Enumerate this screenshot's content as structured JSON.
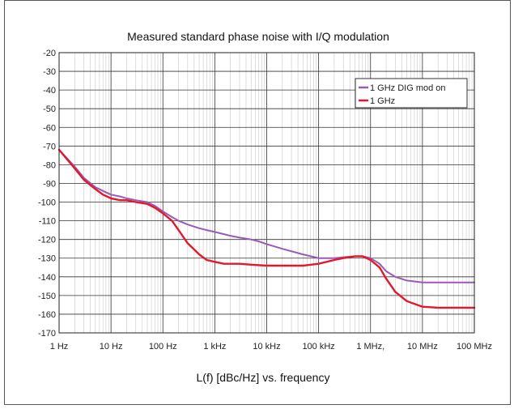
{
  "chart_data": {
    "type": "line",
    "title": "Measured standard phase noise with I/Q modulation",
    "xlabel": "L(f) [dBc/Hz] vs. frequency",
    "ylabel": "",
    "x_scale": "log",
    "x_unit": "Hz",
    "xlim": [
      1,
      100000000
    ],
    "ylim": [
      -170,
      -20
    ],
    "y_ticks": [
      -20,
      -30,
      -40,
      -50,
      -60,
      -70,
      -80,
      -90,
      -100,
      -110,
      -120,
      -130,
      -140,
      -150,
      -160,
      -170
    ],
    "y_tick_labels": [
      "-20",
      "-30",
      "-40",
      "-50",
      "-60",
      "-70",
      "-80",
      "-90",
      "-100",
      "-110",
      "-120",
      "-130",
      "-140",
      "-150",
      "-160",
      "-170"
    ],
    "x_ticks": [
      1,
      10,
      100,
      1000,
      10000,
      100000,
      1000000,
      10000000,
      100000000
    ],
    "x_tick_labels": [
      "1 Hz",
      "10 Hz",
      "100 Hz",
      "1 kHz",
      "10 kHz",
      "100 kHz",
      "1 MHz,",
      "10 MHz",
      "100 MHz"
    ],
    "grid": true,
    "legend": "top-right",
    "series": [
      {
        "name": "1 GHz DIG mod on",
        "color": "#9b59b6",
        "x": [
          1,
          2,
          3,
          5,
          7,
          10,
          15,
          20,
          30,
          50,
          70,
          100,
          150,
          200,
          300,
          500,
          700,
          1000,
          2000,
          3000,
          5000,
          7000,
          10000,
          20000,
          50000,
          100000,
          200000,
          300000,
          500000,
          700000,
          1000000,
          1500000,
          2000000,
          3000000,
          5000000,
          10000000,
          20000000,
          50000000,
          100000000
        ],
        "y": [
          -72,
          -81,
          -87,
          -92,
          -94,
          -96,
          -97,
          -98,
          -99,
          -100,
          -102,
          -105,
          -108,
          -110,
          -112,
          -114,
          -115,
          -116,
          -118,
          -119,
          -120,
          -121,
          -122.5,
          -125,
          -128,
          -130,
          -130,
          -129.5,
          -129,
          -129,
          -130,
          -133,
          -137,
          -140,
          -142,
          -143,
          -143,
          -143,
          -143
        ]
      },
      {
        "name": "1 GHz",
        "color": "#e2192c",
        "x": [
          1,
          2,
          3,
          5,
          7,
          10,
          15,
          20,
          30,
          50,
          70,
          100,
          150,
          200,
          300,
          500,
          700,
          1000,
          1500,
          2000,
          3000,
          5000,
          10000,
          20000,
          50000,
          100000,
          200000,
          300000,
          500000,
          700000,
          1000000,
          1500000,
          2000000,
          3000000,
          5000000,
          10000000,
          20000000,
          50000000,
          100000000
        ],
        "y": [
          -72,
          -82,
          -88,
          -93,
          -96,
          -98,
          -99,
          -99,
          -100,
          -101,
          -103,
          -106,
          -110,
          -115,
          -122,
          -128,
          -131,
          -132,
          -133,
          -133,
          -133,
          -133.5,
          -134,
          -134,
          -134,
          -133,
          -131,
          -130,
          -129,
          -129,
          -131,
          -135,
          -141,
          -148,
          -153,
          -156,
          -156.5,
          -156.5,
          -156.5
        ]
      }
    ]
  }
}
